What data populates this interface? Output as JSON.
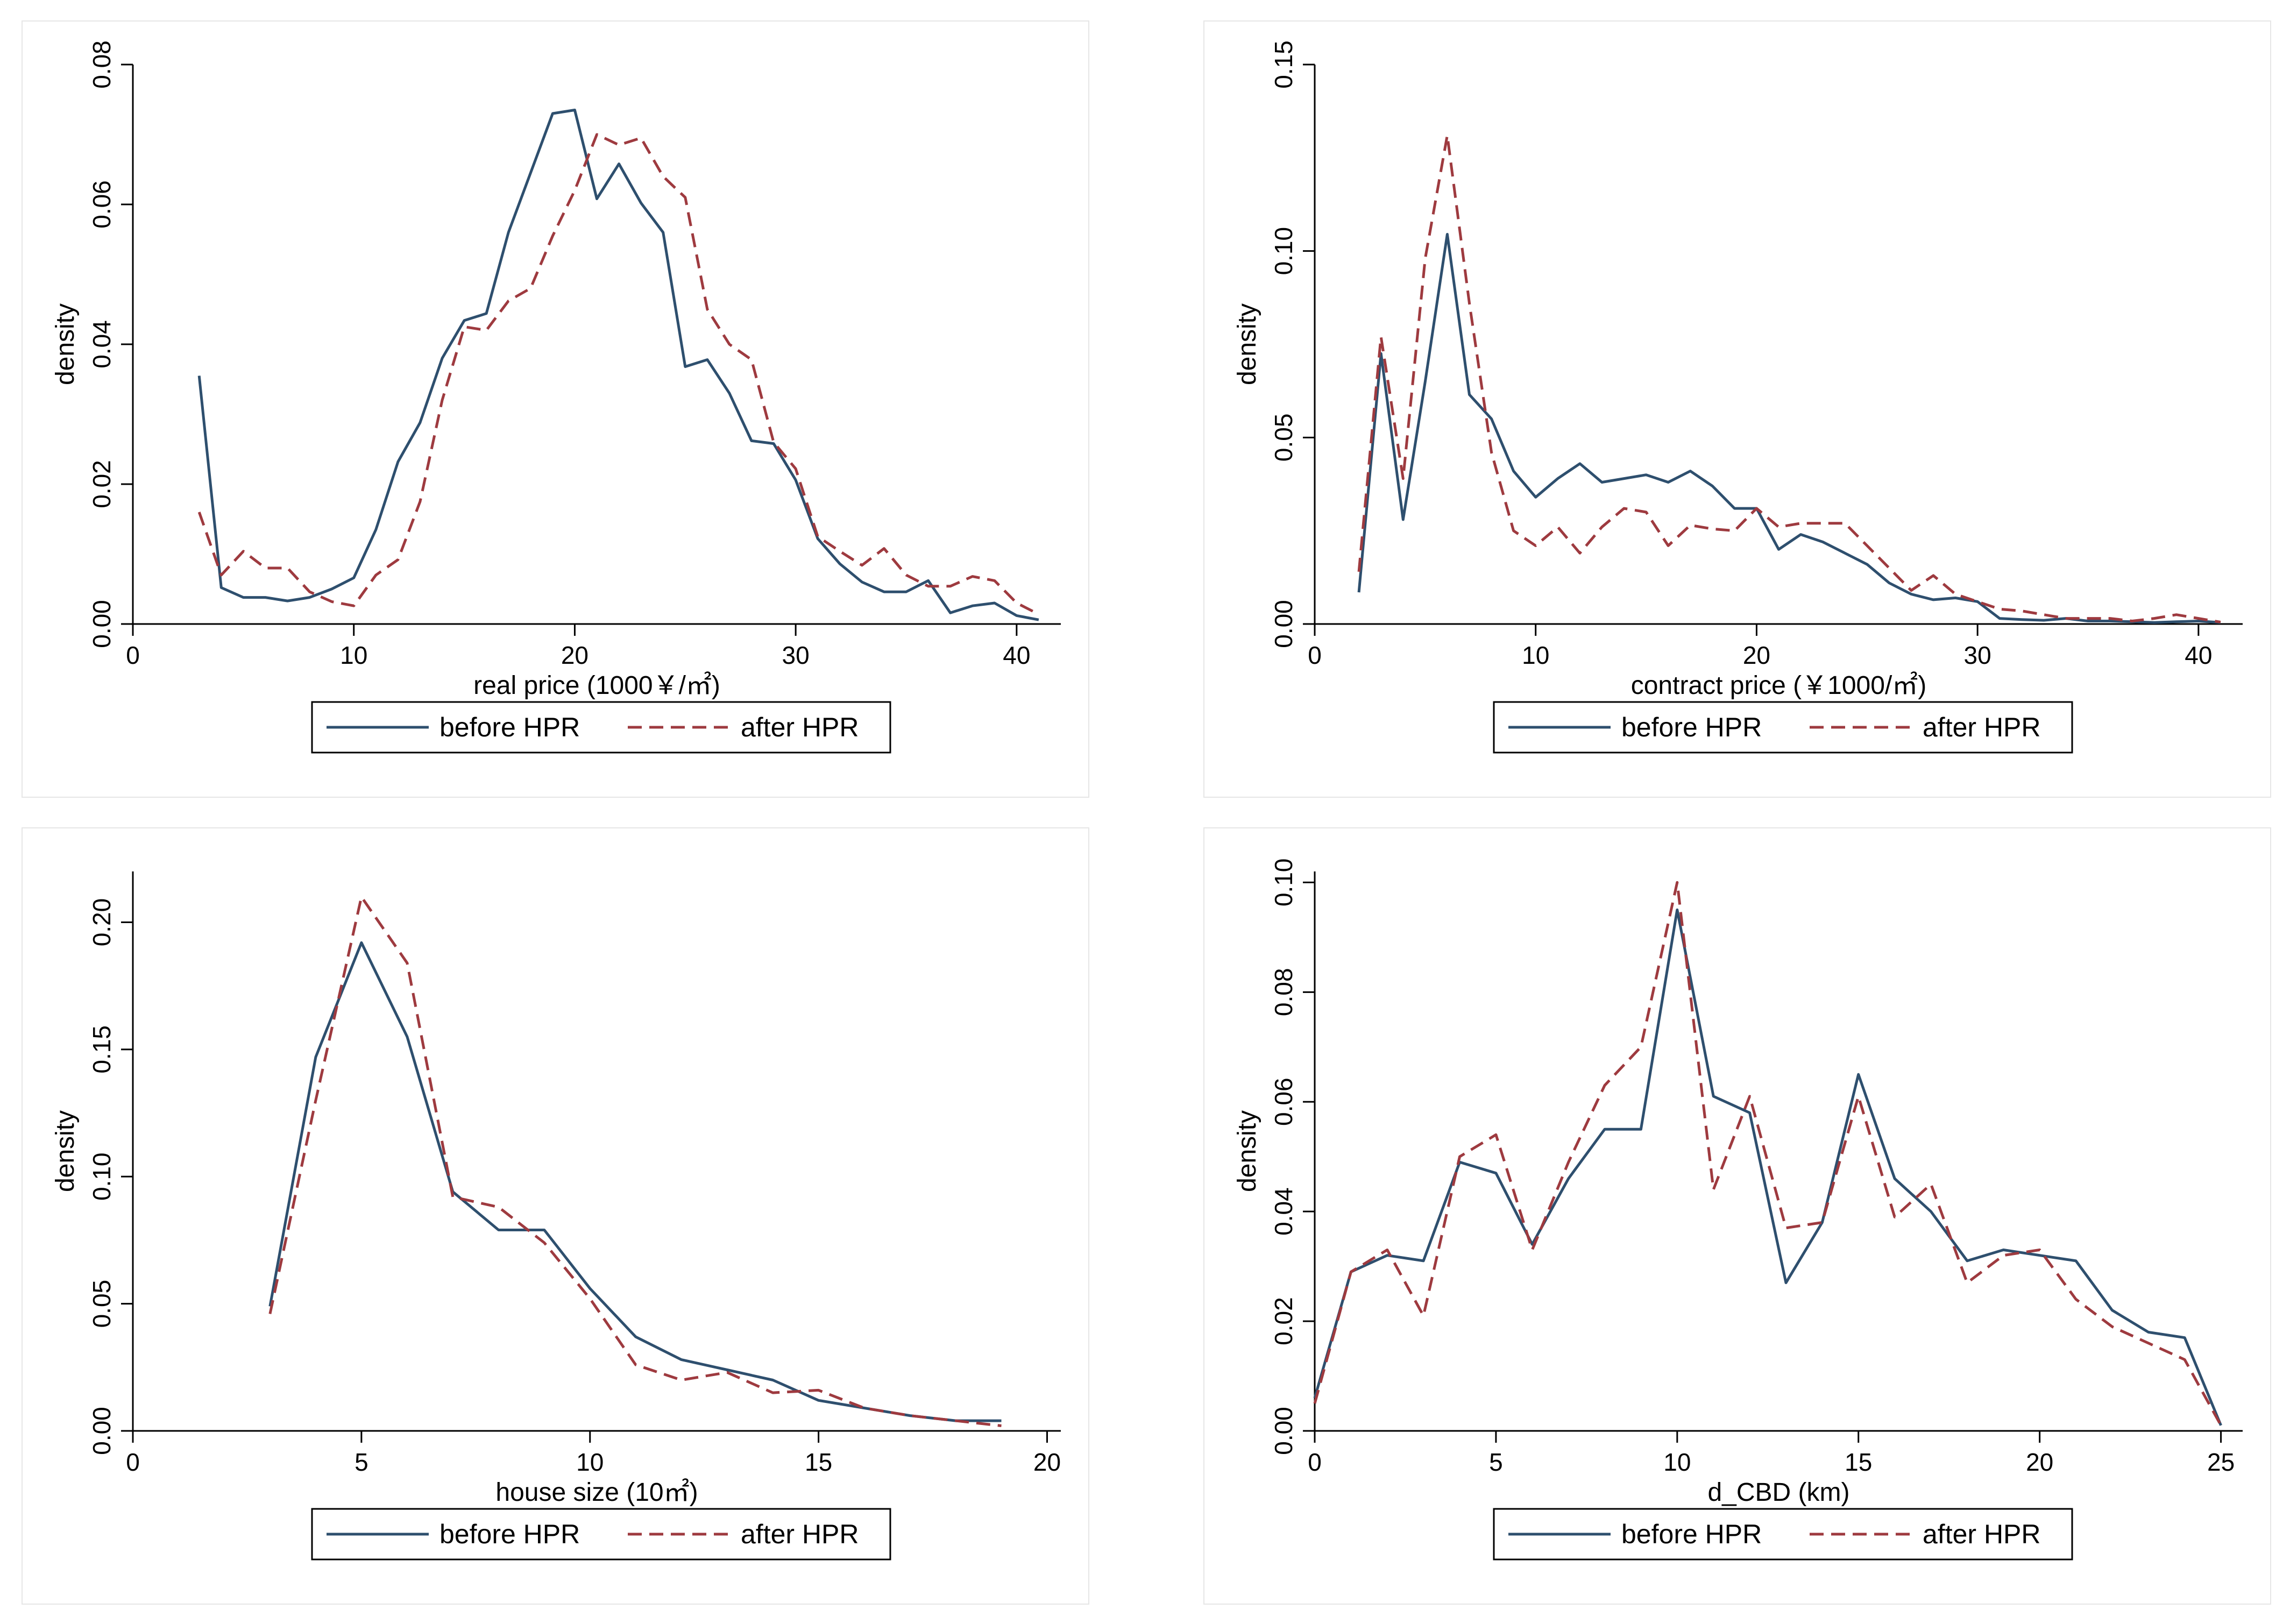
{
  "colors": {
    "before": "#2e4f6e",
    "after": "#9e3a3f"
  },
  "chart_data": [
    {
      "type": "line",
      "xlabel": "real price (1000￥/㎡)",
      "ylabel": "density",
      "xlim": [
        0,
        42
      ],
      "ylim": [
        0,
        0.08
      ],
      "xticks": [
        0,
        10,
        20,
        30,
        40
      ],
      "yticks": [
        0,
        0.02,
        0.04,
        0.06,
        0.08
      ],
      "ytick_labels": [
        "0.00",
        "0.02",
        "0.04",
        "0.06",
        "0.08"
      ],
      "legend": [
        "before HPR",
        "after HPR"
      ],
      "series": [
        {
          "name": "before HPR",
          "style": "solid",
          "x": [
            3,
            4,
            5,
            6,
            7,
            8,
            9,
            10,
            11,
            12,
            13,
            14,
            15,
            16,
            17,
            18,
            19,
            20,
            21,
            22,
            23,
            24,
            25,
            26,
            27,
            28,
            29,
            30,
            31,
            32,
            33,
            34,
            35,
            36,
            37,
            38,
            39,
            40,
            41
          ],
          "y": [
            0.0355,
            0.0052,
            0.0038,
            0.0038,
            0.0033,
            0.0038,
            0.005,
            0.0066,
            0.0135,
            0.0232,
            0.0288,
            0.038,
            0.0434,
            0.0444,
            0.056,
            0.0645,
            0.073,
            0.0735,
            0.0608,
            0.0658,
            0.0602,
            0.056,
            0.0368,
            0.0378,
            0.033,
            0.0262,
            0.0258,
            0.0206,
            0.0122,
            0.0086,
            0.006,
            0.0046,
            0.0046,
            0.0062,
            0.0016,
            0.0026,
            0.003,
            0.0012,
            0.0006
          ]
        },
        {
          "name": "after HPR",
          "style": "dashed",
          "x": [
            3,
            4,
            5,
            6,
            7,
            8,
            9,
            10,
            11,
            12,
            13,
            14,
            15,
            16,
            17,
            18,
            19,
            20,
            21,
            22,
            23,
            24,
            25,
            26,
            27,
            28,
            29,
            30,
            31,
            32,
            33,
            34,
            35,
            36,
            37,
            38,
            39,
            40,
            41
          ],
          "y": [
            0.016,
            0.007,
            0.0104,
            0.008,
            0.008,
            0.0046,
            0.0032,
            0.0026,
            0.007,
            0.0092,
            0.0175,
            0.032,
            0.0425,
            0.042,
            0.0462,
            0.048,
            0.0555,
            0.062,
            0.07,
            0.0685,
            0.0695,
            0.064,
            0.061,
            0.045,
            0.04,
            0.0378,
            0.026,
            0.0222,
            0.0125,
            0.0104,
            0.0084,
            0.0108,
            0.007,
            0.0054,
            0.0054,
            0.0068,
            0.0062,
            0.003,
            0.0014
          ]
        }
      ]
    },
    {
      "type": "line",
      "xlabel": "contract price (￥1000/㎡)",
      "ylabel": "density",
      "xlim": [
        0,
        42
      ],
      "ylim": [
        0,
        0.15
      ],
      "xticks": [
        0,
        10,
        20,
        30,
        40
      ],
      "yticks": [
        0,
        0.05,
        0.1,
        0.15
      ],
      "ytick_labels": [
        "0.00",
        "0.05",
        "0.10",
        "0.15"
      ],
      "legend": [
        "before HPR",
        "after HPR"
      ],
      "series": [
        {
          "name": "before HPR",
          "style": "solid",
          "x": [
            2,
            3,
            4,
            5,
            6,
            7,
            8,
            9,
            10,
            11,
            12,
            13,
            14,
            15,
            16,
            17,
            18,
            19,
            20,
            21,
            22,
            23,
            24,
            25,
            26,
            27,
            28,
            29,
            30,
            31,
            32,
            33,
            34,
            35,
            36,
            37,
            38,
            39,
            40,
            41
          ],
          "y": [
            0.0085,
            0.0725,
            0.028,
            0.065,
            0.1045,
            0.0615,
            0.055,
            0.041,
            0.034,
            0.039,
            0.043,
            0.038,
            0.039,
            0.04,
            0.038,
            0.041,
            0.037,
            0.031,
            0.031,
            0.02,
            0.024,
            0.022,
            0.019,
            0.016,
            0.011,
            0.008,
            0.0065,
            0.007,
            0.006,
            0.0015,
            0.0012,
            0.001,
            0.0015,
            0.0008,
            0.0008,
            0.0006,
            0.0004,
            0.0006,
            0.0008,
            0.0004
          ]
        },
        {
          "name": "after HPR",
          "style": "dashed",
          "x": [
            2,
            3,
            4,
            5,
            6,
            7,
            8,
            9,
            10,
            11,
            12,
            13,
            14,
            15,
            16,
            17,
            18,
            19,
            20,
            21,
            22,
            23,
            24,
            25,
            26,
            27,
            28,
            29,
            30,
            31,
            32,
            33,
            34,
            35,
            36,
            37,
            38,
            39,
            40,
            41
          ],
          "y": [
            0.014,
            0.077,
            0.039,
            0.098,
            0.131,
            0.086,
            0.046,
            0.025,
            0.021,
            0.026,
            0.019,
            0.026,
            0.031,
            0.03,
            0.021,
            0.0265,
            0.0255,
            0.025,
            0.031,
            0.026,
            0.027,
            0.027,
            0.027,
            0.021,
            0.015,
            0.009,
            0.013,
            0.008,
            0.006,
            0.004,
            0.0035,
            0.0025,
            0.0015,
            0.0015,
            0.0015,
            0.0008,
            0.0015,
            0.0025,
            0.0015,
            0.0005
          ]
        }
      ]
    },
    {
      "type": "line",
      "xlabel": "house size (10㎡)",
      "ylabel": "density",
      "xlim": [
        0,
        20.3
      ],
      "ylim": [
        0,
        0.22
      ],
      "xticks": [
        0,
        5,
        10,
        15,
        20
      ],
      "yticks": [
        0,
        0.05,
        0.1,
        0.15,
        0.2
      ],
      "ytick_labels": [
        "0.00",
        "0.05",
        "0.10",
        "0.15",
        "0.20"
      ],
      "legend": [
        "before HPR",
        "after HPR"
      ],
      "series": [
        {
          "name": "before HPR",
          "style": "solid",
          "x": [
            3,
            4,
            5,
            6,
            7,
            8,
            9,
            10,
            11,
            12,
            13,
            14,
            15,
            16,
            17,
            18,
            19
          ],
          "y": [
            0.049,
            0.147,
            0.192,
            0.155,
            0.094,
            0.079,
            0.079,
            0.056,
            0.037,
            0.028,
            0.024,
            0.02,
            0.012,
            0.009,
            0.006,
            0.004,
            0.004
          ]
        },
        {
          "name": "after HPR",
          "style": "dashed",
          "x": [
            3,
            4,
            5,
            6,
            7,
            8,
            9,
            10,
            11,
            12,
            13,
            14,
            15,
            16,
            17,
            18,
            19
          ],
          "y": [
            0.046,
            0.13,
            0.21,
            0.184,
            0.092,
            0.088,
            0.074,
            0.052,
            0.026,
            0.02,
            0.023,
            0.015,
            0.016,
            0.009,
            0.006,
            0.004,
            0.002
          ]
        }
      ]
    },
    {
      "type": "line",
      "xlabel": "d_CBD (km)",
      "ylabel": "density",
      "xlim": [
        0,
        25.6
      ],
      "ylim": [
        0,
        0.102
      ],
      "xticks": [
        0,
        5,
        10,
        15,
        20,
        25
      ],
      "yticks": [
        0,
        0.02,
        0.04,
        0.06,
        0.08,
        0.1
      ],
      "ytick_labels": [
        "0.00",
        "0.02",
        "0.04",
        "0.06",
        "0.08",
        "0.10"
      ],
      "legend": [
        "before HPR",
        "after HPR"
      ],
      "series": [
        {
          "name": "before HPR",
          "style": "solid",
          "x": [
            0,
            1,
            2,
            3,
            4,
            5,
            6,
            7,
            8,
            9,
            10,
            11,
            12,
            13,
            14,
            15,
            16,
            17,
            18,
            19,
            20,
            21,
            22,
            23,
            24,
            25
          ],
          "y": [
            0.006,
            0.029,
            0.032,
            0.031,
            0.049,
            0.047,
            0.034,
            0.046,
            0.055,
            0.055,
            0.095,
            0.061,
            0.058,
            0.027,
            0.038,
            0.065,
            0.046,
            0.04,
            0.031,
            0.033,
            0.032,
            0.031,
            0.022,
            0.018,
            0.017,
            0.001
          ]
        },
        {
          "name": "after HPR",
          "style": "dashed",
          "x": [
            0,
            1,
            2,
            3,
            4,
            5,
            6,
            7,
            8,
            9,
            10,
            11,
            12,
            13,
            14,
            15,
            16,
            17,
            18,
            19,
            20,
            21,
            22,
            23,
            24,
            25
          ],
          "y": [
            0.005,
            0.029,
            0.033,
            0.021,
            0.05,
            0.054,
            0.033,
            0.049,
            0.063,
            0.07,
            0.1,
            0.044,
            0.061,
            0.037,
            0.038,
            0.061,
            0.039,
            0.045,
            0.027,
            0.032,
            0.033,
            0.024,
            0.019,
            0.016,
            0.013,
            0.001
          ]
        }
      ]
    }
  ]
}
